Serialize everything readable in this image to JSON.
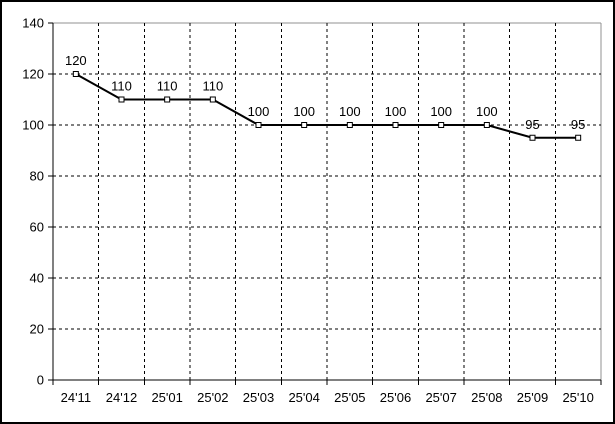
{
  "chart_data": {
    "type": "line",
    "title": "",
    "xlabel": "",
    "ylabel": "",
    "categories": [
      "24'11",
      "24'12",
      "25'01",
      "25'02",
      "25'03",
      "25'04",
      "25'05",
      "25'06",
      "25'07",
      "25'08",
      "25'09",
      "25'10"
    ],
    "series": [
      {
        "name": "",
        "values": [
          120,
          110,
          110,
          110,
          100,
          100,
          100,
          100,
          100,
          100,
          95,
          95
        ],
        "data_labels": [
          "120",
          "110",
          "110",
          "110",
          "100",
          "100",
          "100",
          "100",
          "100",
          "100",
          "95",
          "95"
        ]
      }
    ],
    "ylim": [
      0,
      140
    ],
    "yticks": [
      0,
      20,
      40,
      60,
      80,
      100,
      120,
      140
    ],
    "grid": {
      "horizontal": true,
      "vertical": true,
      "style": "dashed"
    },
    "legend_position": "none",
    "marker": "hollow-square",
    "colors": {
      "line": "#000000",
      "marker_fill": "#ffffff",
      "marker_stroke": "#000000",
      "grid": "#000000",
      "axis": "#000000",
      "plot_border": "#909090",
      "outer_border": "#000000",
      "background": "#ffffff",
      "text": "#000000"
    }
  }
}
